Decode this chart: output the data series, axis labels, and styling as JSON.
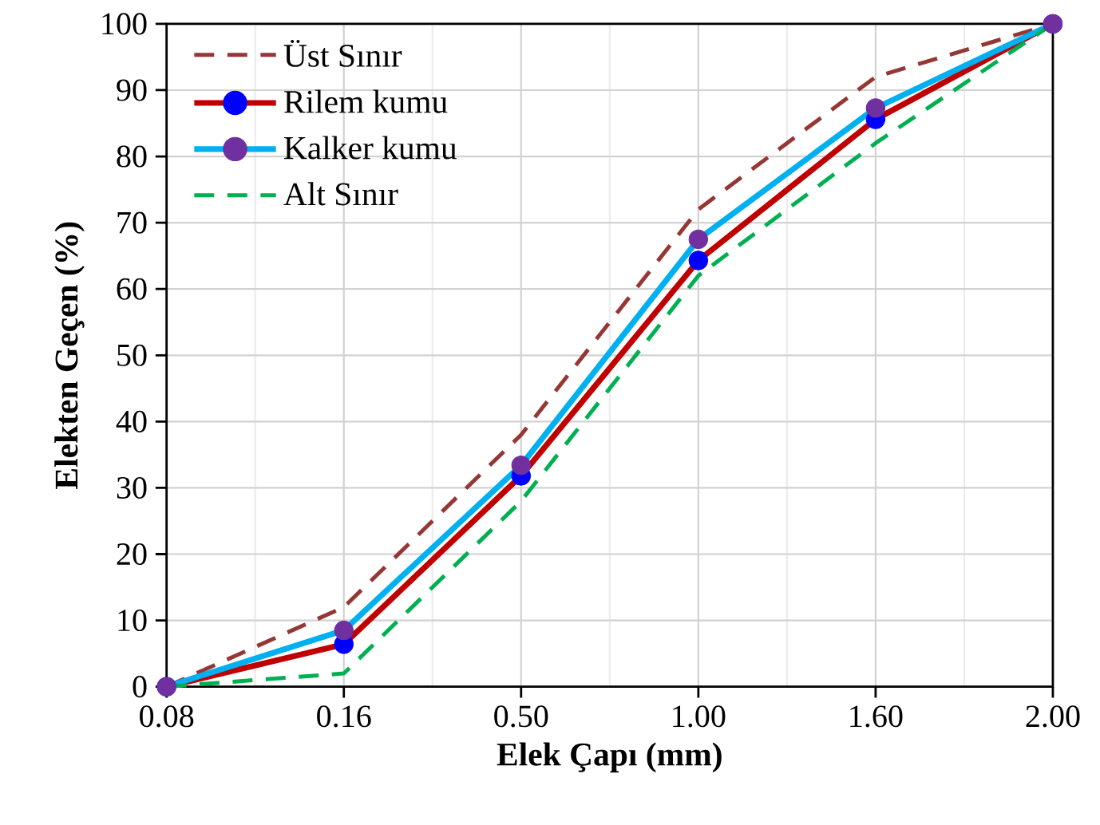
{
  "chart_data": {
    "type": "line",
    "xlabel": "Elek Çapı (mm)",
    "ylabel": "Elekten Geçen (%)",
    "categories": [
      "0.08",
      "0.16",
      "0.50",
      "1.00",
      "1.60",
      "2.00"
    ],
    "ylim": [
      0,
      100
    ],
    "yticks": [
      0,
      10,
      20,
      30,
      40,
      50,
      60,
      70,
      80,
      90,
      100
    ],
    "grid": true,
    "legend": "top left",
    "series": [
      {
        "name": "Üst Sınır",
        "color": "#953735",
        "line_style": "dashed",
        "marker": "none",
        "values": [
          0,
          12,
          38,
          72,
          92,
          100
        ]
      },
      {
        "name": "Rilem kumu",
        "color": "#c00000",
        "colors": [
          "#0000ff",
          "#0000ff",
          "#0000ff",
          "#0000ff",
          "#0000ff",
          "#0000ff"
        ],
        "line_style": "solid",
        "marker": "circle",
        "values": [
          0,
          6.4,
          31.8,
          64.3,
          85.6,
          100
        ]
      },
      {
        "name": "Kalker kumu",
        "color": "#00b0f0",
        "colors": [
          "#7030a0",
          "#7030a0",
          "#7030a0",
          "#7030a0",
          "#7030a0",
          "#7030a0"
        ],
        "line_style": "solid",
        "marker": "circle",
        "values": [
          0,
          8.5,
          33.4,
          67.5,
          87.3,
          100
        ]
      },
      {
        "name": "Alt Sınır",
        "color": "#00b050",
        "line_style": "dashed",
        "marker": "none",
        "values": [
          0,
          2,
          28,
          62,
          82,
          100
        ]
      }
    ]
  }
}
